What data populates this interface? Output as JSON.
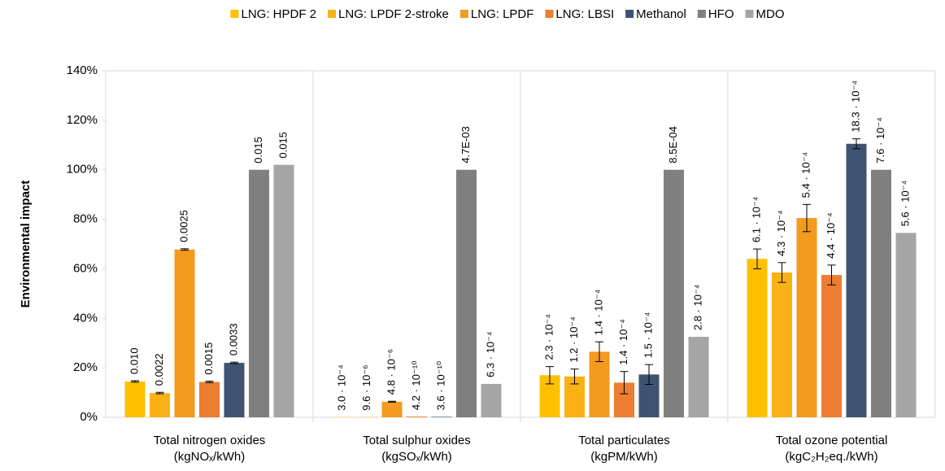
{
  "chart_data": {
    "type": "bar",
    "y_label": "Environmental impact",
    "categories": [
      [
        "Total nitrogen oxides",
        "(kgNOₓ/kWh)"
      ],
      [
        "Total sulphur oxides",
        "(kgSOₓ/kWh)"
      ],
      [
        "Total particulates",
        "(kgPM/kWh)"
      ],
      [
        "Total ozone potential",
        "(kgC₂H₂eq./kWh)"
      ]
    ],
    "ylim": [
      0,
      140
    ],
    "yticks": [
      {
        "value": 0,
        "label": "0%"
      },
      {
        "value": 20,
        "label": "20%"
      },
      {
        "value": 40,
        "label": "40%"
      },
      {
        "value": 60,
        "label": "60%"
      },
      {
        "value": 80,
        "label": "80%"
      },
      {
        "value": 100,
        "label": "100%"
      },
      {
        "value": 120,
        "label": "120%"
      },
      {
        "value": 140,
        "label": "140%"
      }
    ],
    "grid": false,
    "legend_position": "top",
    "series": [
      {
        "name": "LNG: HPDF 2",
        "color": "#ffc000",
        "values": [
          14.5,
          0.1,
          17,
          64
        ],
        "errors": [
          0.3,
          null,
          3.5,
          4
        ],
        "value_labels": [
          "0.010",
          "3.0 · 10⁻⁴",
          "2.3 · 10⁻⁴",
          "6.1 · 10⁻⁴"
        ]
      },
      {
        "name": "LNG: LPDF 2-stroke",
        "color": "#f9b115",
        "values": [
          9.8,
          0.1,
          16.5,
          58.5
        ],
        "errors": [
          0.3,
          null,
          3,
          4
        ],
        "value_labels": [
          "0.0022",
          "9.6 · 10⁻⁶",
          "1.2 · 10⁻⁴",
          "4.3 · 10⁻⁴"
        ]
      },
      {
        "name": "LNG: LPDF",
        "color": "#f39a1f",
        "values": [
          67.8,
          6.3,
          26.5,
          80.5
        ],
        "errors": [
          0.3,
          0.2,
          4,
          5.5
        ],
        "value_labels": [
          "0.0025",
          "4.8 · 10⁻⁶",
          "1.4 · 10⁻⁴",
          "5.4 · 10⁻⁴"
        ]
      },
      {
        "name": "LNG: LBSI",
        "color": "#ed7d31",
        "values": [
          14.3,
          0.3,
          14,
          57.5
        ],
        "errors": [
          0.3,
          null,
          4.5,
          4
        ],
        "value_labels": [
          "0.0015",
          "4.2 · 10⁻¹⁰",
          "1.4 · 10⁻⁴",
          "4.4 · 10⁻⁴"
        ]
      },
      {
        "name": "Methanol",
        "color": "#3e5371",
        "values": [
          22,
          0.2,
          17.3,
          110.5
        ],
        "errors": [
          0.3,
          null,
          4,
          2
        ],
        "value_labels": [
          "0.0033",
          "3.6 · 10⁻¹⁰",
          "1.5 · 10⁻⁴",
          "18.3 · 10⁻⁴"
        ]
      },
      {
        "name": "HFO",
        "color": "#7f7f7f",
        "values": [
          100,
          100,
          100,
          100
        ],
        "errors": [
          null,
          null,
          null,
          null
        ],
        "value_labels": [
          "0.015",
          "4.7E-03",
          "8.5E-04",
          "7.6 · 10⁻⁴"
        ]
      },
      {
        "name": "MDO",
        "color": "#a5a5a5",
        "values": [
          102,
          13.5,
          32.5,
          74.5
        ],
        "errors": [
          null,
          null,
          null,
          null
        ],
        "value_labels": [
          "0.015",
          "6.3 · 10⁻⁴",
          "2.8 · 10⁻⁴",
          "5.6 · 10⁻⁴"
        ]
      }
    ]
  }
}
